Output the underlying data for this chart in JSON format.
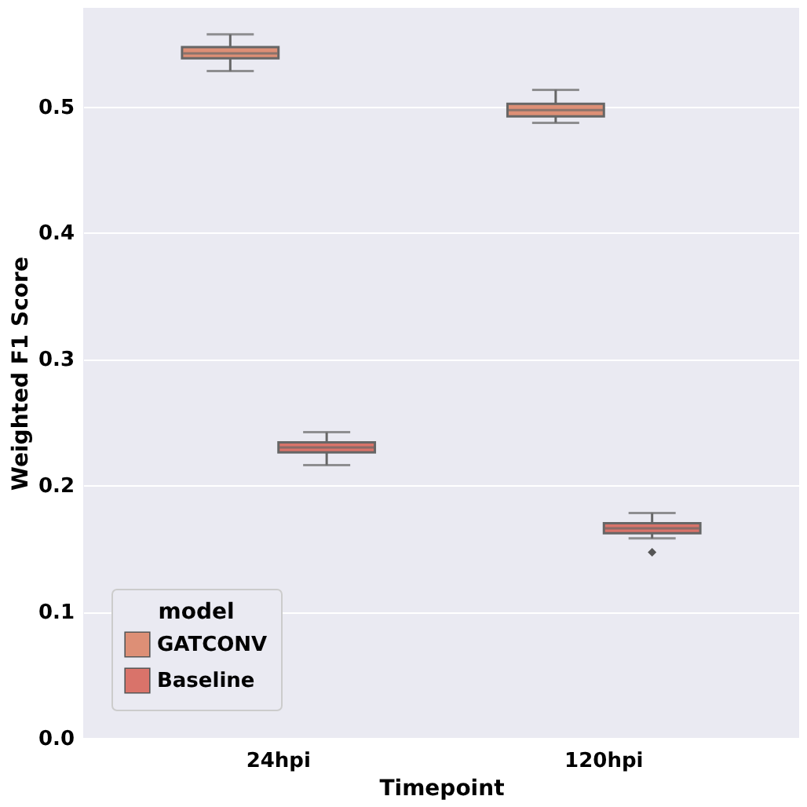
{
  "chart_data": {
    "type": "box",
    "xlabel": "Timepoint",
    "ylabel": "Weighted F1 Score",
    "legend_title": "model",
    "categories": [
      "24hpi",
      "120hpi"
    ],
    "series": [
      {
        "name": "GATCONV",
        "color": "#dd8f76",
        "boxes": [
          {
            "low": 0.528,
            "q1": 0.538,
            "median": 0.542,
            "q3": 0.547,
            "high": 0.557
          },
          {
            "low": 0.487,
            "q1": 0.492,
            "median": 0.497,
            "q3": 0.502,
            "high": 0.513
          }
        ]
      },
      {
        "name": "Baseline",
        "color": "#d9736a",
        "boxes": [
          {
            "low": 0.216,
            "q1": 0.226,
            "median": 0.23,
            "q3": 0.234,
            "high": 0.242
          },
          {
            "low": 0.158,
            "q1": 0.162,
            "median": 0.166,
            "q3": 0.17,
            "high": 0.178,
            "outliers": [
              0.147
            ]
          }
        ]
      }
    ],
    "ylim": [
      0,
      0.578
    ],
    "yticks": [
      {
        "value": 0,
        "label": "0.0"
      },
      {
        "value": 0.1,
        "label": "0.1"
      },
      {
        "value": 0.2,
        "label": "0.2"
      },
      {
        "value": 0.3,
        "label": "0.3"
      },
      {
        "value": 0.4,
        "label": "0.4"
      },
      {
        "value": 0.5,
        "label": "0.5"
      }
    ],
    "grid": "y",
    "legend": "bottom left"
  }
}
